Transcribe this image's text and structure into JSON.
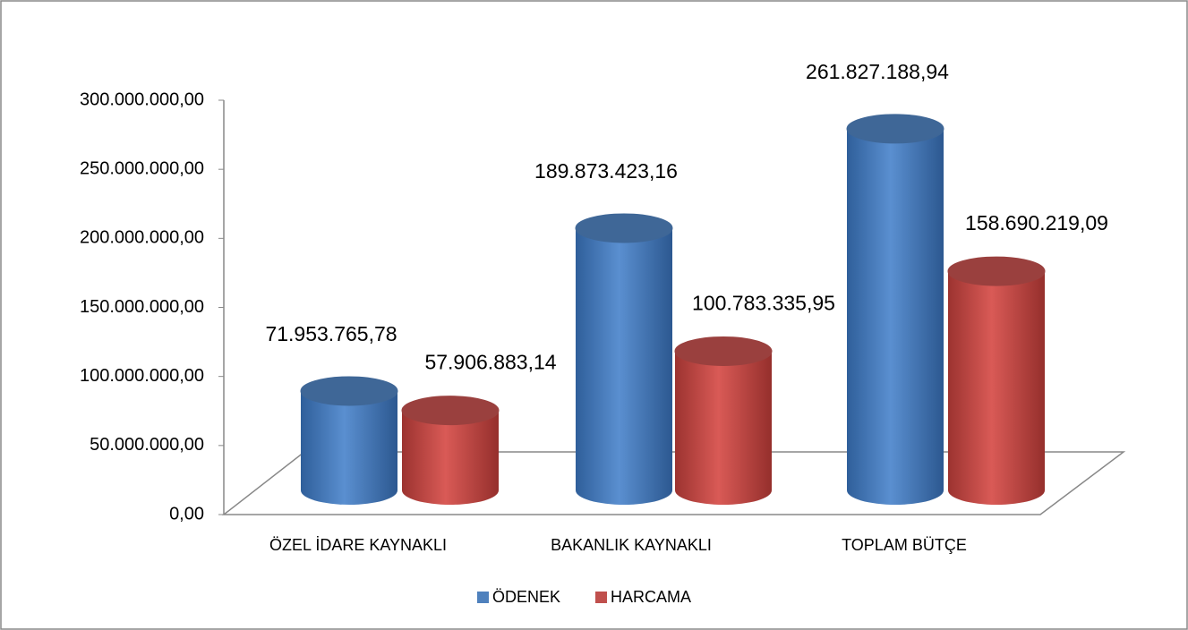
{
  "chart_data": {
    "type": "bar3d",
    "categories": [
      "ÖZEL İDARE KAYNAKLI",
      "BAKANLIK KAYNAKLI",
      "TOPLAM BÜTÇE"
    ],
    "series": [
      {
        "name": "ÖDENEK",
        "color": "#4f81bd",
        "values": [
          71953765.78,
          189873423.16,
          261827188.94
        ],
        "value_labels": [
          "71.953.765,78",
          "189.873.423,16",
          "261.827.188,94"
        ]
      },
      {
        "name": "HARCAMA",
        "color": "#c0504d",
        "values": [
          57906883.14,
          100783335.95,
          158690219.09
        ],
        "value_labels": [
          "57.906.883,14",
          "100.783.335,95",
          "158.690.219,09"
        ]
      }
    ],
    "ylim": [
      0,
      300000000
    ],
    "yticks": [
      {
        "value": 0,
        "label": "0,00"
      },
      {
        "value": 50000000,
        "label": "50.000.000,00"
      },
      {
        "value": 100000000,
        "label": "100.000.000,00"
      },
      {
        "value": 150000000,
        "label": "150.000.000,00"
      },
      {
        "value": 200000000,
        "label": "200.000.000,00"
      },
      {
        "value": 250000000,
        "label": "250.000.000,00"
      },
      {
        "value": 300000000,
        "label": "300.000.000,00"
      }
    ],
    "legend": "bottom"
  }
}
